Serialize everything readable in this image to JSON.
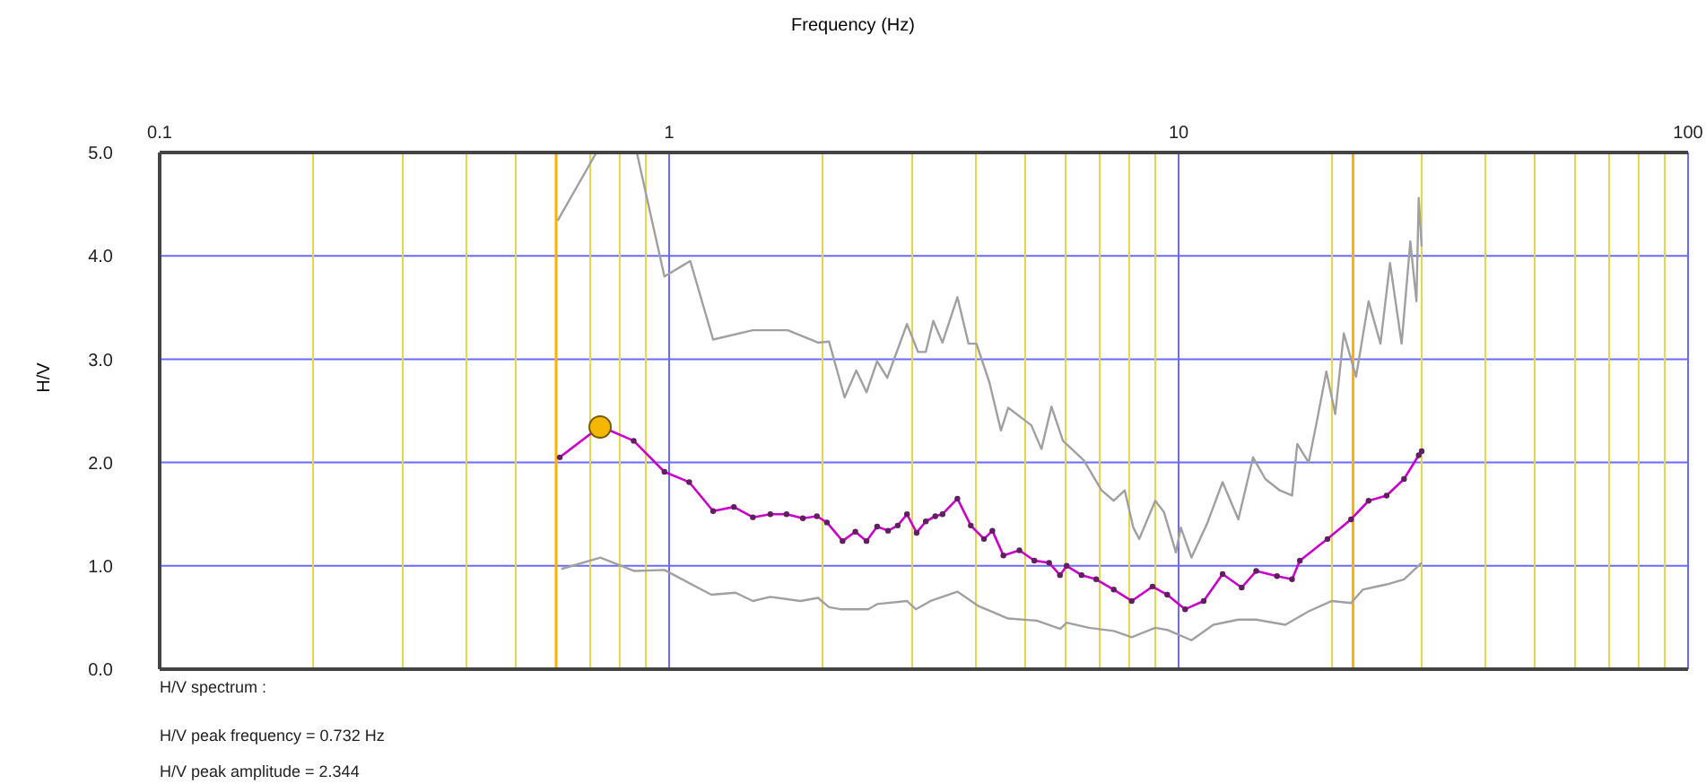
{
  "chart_data": {
    "type": "line",
    "xlabel": "Frequency (Hz)",
    "ylabel": "H/V",
    "annotations": [
      "H/V spectrum :",
      "H/V peak frequency = 0.732 Hz",
      "H/V peak amplitude = 2.344"
    ],
    "log": "x",
    "grid": true,
    "legend": false,
    "xlim": [
      0.1,
      100
    ],
    "xticks": [
      0.1,
      {
        "value": 0.2,
        "label": null
      },
      {
        "value": 0.3,
        "label": null
      },
      {
        "value": 0.4,
        "label": null
      },
      {
        "value": 0.5,
        "label": null
      },
      {
        "value": 0.6,
        "label": null
      },
      {
        "value": 0.7,
        "label": null
      },
      {
        "value": 0.8,
        "label": null
      },
      {
        "value": 0.9,
        "label": null
      },
      1,
      {
        "value": 2,
        "label": null
      },
      {
        "value": 3,
        "label": null
      },
      {
        "value": 4,
        "label": null
      },
      {
        "value": 5,
        "label": null
      },
      {
        "value": 6,
        "label": null
      },
      {
        "value": 7,
        "label": null
      },
      {
        "value": 8,
        "label": null
      },
      {
        "value": 9,
        "label": null
      },
      10,
      {
        "value": 20,
        "label": null
      },
      {
        "value": 30,
        "label": null
      },
      {
        "value": 40,
        "label": null
      },
      {
        "value": 50,
        "label": null
      },
      {
        "value": 60,
        "label": null
      },
      {
        "value": 70,
        "label": null
      },
      {
        "value": 80,
        "label": null
      },
      {
        "value": 90,
        "label": null
      },
      100
    ],
    "ylim": [
      0,
      5
    ],
    "yticks": [
      {
        "value": 0,
        "label": "0.0"
      },
      {
        "value": 1,
        "label": "1.0"
      },
      {
        "value": 2,
        "label": "2.0"
      },
      {
        "value": 3,
        "label": "3.0"
      },
      {
        "value": 4,
        "label": "4.0"
      },
      {
        "value": 5,
        "label": "5.0"
      }
    ],
    "ref_lines": [
      {
        "axis": "x",
        "value": 0.6,
        "color": "#ffb000"
      },
      {
        "axis": "x",
        "value": 22,
        "color": "#ffb000"
      }
    ],
    "series": [
      {
        "color": "#a0a0a0",
        "marker": "none",
        "x": [
          0.604,
          0.72,
          0.864,
          0.979,
          1.1,
          1.22,
          1.46,
          1.71,
          1.96,
          2.06,
          2.21,
          2.33,
          2.44,
          2.56,
          2.68,
          2.93,
          3.08,
          3.19,
          3.3,
          3.44,
          3.68,
          3.87,
          4.01,
          4.25,
          4.48,
          4.63,
          5.14,
          5.38,
          5.63,
          5.93,
          6.52,
          7.06,
          7.46,
          7.84,
          8.15,
          8.37,
          9.0,
          9.36,
          9.88,
          10.1,
          10.6,
          11.4,
          12.2,
          13.1,
          14.0,
          14.8,
          15.8,
          16.7,
          17.1,
          18.0,
          18.7,
          19.5,
          20.3,
          21.1,
          22.3,
          23.6,
          24.9,
          26.0,
          27.4,
          28.5,
          29.3,
          29.6,
          30.0
        ],
        "values": [
          4.34,
          5.0,
          5.0,
          3.8,
          3.95,
          3.19,
          3.28,
          3.28,
          3.16,
          3.17,
          2.63,
          2.89,
          2.68,
          2.98,
          2.82,
          3.34,
          3.07,
          3.07,
          3.37,
          3.16,
          3.6,
          3.15,
          3.15,
          2.78,
          2.31,
          2.53,
          2.36,
          2.13,
          2.54,
          2.21,
          2.02,
          1.73,
          1.63,
          1.73,
          1.37,
          1.26,
          1.63,
          1.52,
          1.13,
          1.37,
          1.08,
          1.42,
          1.81,
          1.45,
          2.05,
          1.84,
          1.73,
          1.68,
          2.18,
          2.0,
          2.41,
          2.88,
          2.47,
          3.25,
          2.83,
          3.56,
          3.15,
          3.93,
          3.15,
          4.14,
          3.56,
          4.56,
          4.09
        ]
      },
      {
        "color": "#a0a0a0",
        "marker": "none",
        "x": [
          0.615,
          0.733,
          0.855,
          0.979,
          1.21,
          1.35,
          1.46,
          1.58,
          1.81,
          1.96,
          2.06,
          2.17,
          2.46,
          2.56,
          2.93,
          3.05,
          3.26,
          3.68,
          4.05,
          4.63,
          5.27,
          5.86,
          6.03,
          6.67,
          7.46,
          8.09,
          9.0,
          9.5,
          10.6,
          11.7,
          13.1,
          14.2,
          16.2,
          18.0,
          20.0,
          21.8,
          23.0,
          25.6,
          27.7,
          30.0
        ],
        "values": [
          0.97,
          1.08,
          0.95,
          0.96,
          0.72,
          0.74,
          0.66,
          0.7,
          0.66,
          0.69,
          0.6,
          0.58,
          0.58,
          0.63,
          0.66,
          0.58,
          0.66,
          0.75,
          0.61,
          0.49,
          0.47,
          0.39,
          0.45,
          0.4,
          0.37,
          0.31,
          0.4,
          0.38,
          0.28,
          0.43,
          0.48,
          0.48,
          0.43,
          0.56,
          0.66,
          0.64,
          0.77,
          0.82,
          0.87,
          1.03
        ]
      },
      {
        "color": "#cc00cc",
        "marker": "circle",
        "x": [
          0.61,
          0.733,
          0.852,
          0.979,
          1.095,
          1.22,
          1.34,
          1.46,
          1.58,
          1.7,
          1.83,
          1.95,
          2.04,
          2.19,
          2.32,
          2.44,
          2.56,
          2.69,
          2.81,
          2.93,
          3.06,
          3.19,
          3.33,
          3.44,
          3.68,
          3.91,
          4.15,
          4.31,
          4.53,
          4.87,
          5.21,
          5.57,
          5.85,
          6.03,
          6.45,
          6.89,
          7.46,
          8.09,
          8.89,
          9.5,
          10.3,
          11.2,
          12.2,
          13.3,
          14.2,
          15.6,
          16.7,
          17.3,
          19.6,
          21.8,
          23.6,
          25.6,
          27.7,
          29.6,
          30.0
        ],
        "values": [
          2.05,
          2.35,
          2.21,
          1.91,
          1.81,
          1.53,
          1.57,
          1.47,
          1.5,
          1.5,
          1.46,
          1.48,
          1.42,
          1.24,
          1.33,
          1.24,
          1.38,
          1.34,
          1.39,
          1.5,
          1.32,
          1.43,
          1.48,
          1.5,
          1.65,
          1.39,
          1.26,
          1.34,
          1.1,
          1.15,
          1.05,
          1.03,
          0.91,
          1.0,
          0.91,
          0.87,
          0.77,
          0.66,
          0.8,
          0.72,
          0.58,
          0.66,
          0.92,
          0.79,
          0.95,
          0.9,
          0.87,
          1.05,
          1.26,
          1.45,
          1.63,
          1.68,
          1.84,
          2.07,
          2.11
        ]
      },
      {
        "type": "scatter",
        "color": "#f5b800",
        "marker": "circle",
        "x": [
          0.732
        ],
        "values": [
          2.344
        ]
      }
    ]
  }
}
